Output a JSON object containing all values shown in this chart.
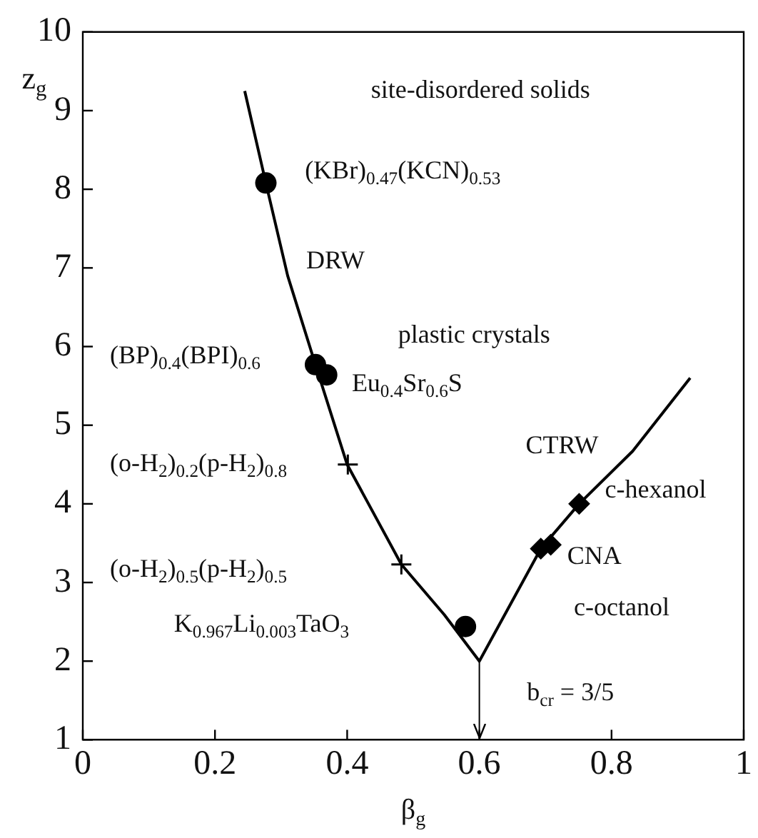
{
  "chart_data": {
    "type": "scatter",
    "xlabel": "β$_{g}$",
    "ylabel": "z$_{g}$",
    "xlim": [
      0,
      1
    ],
    "ylim": [
      1,
      10
    ],
    "xticks": [
      0,
      0.2,
      0.4,
      0.6,
      0.8,
      1
    ],
    "yticks": [
      1,
      2,
      3,
      4,
      5,
      6,
      7,
      8,
      9,
      10
    ],
    "grid": false,
    "legend": false,
    "series": [
      {
        "type": "line",
        "color": "#000000",
        "marker": "none",
        "x": [
          0.245,
          0.277,
          0.31,
          0.352,
          0.4,
          0.482,
          0.547,
          0.6,
          0.693,
          0.751,
          0.832,
          0.919
        ],
        "values": [
          9.25,
          8.08,
          6.9,
          5.77,
          4.5,
          3.23,
          2.59,
          2.0,
          3.43,
          4.0,
          4.67,
          5.6
        ]
      },
      {
        "type": "scatter",
        "color": "#000000",
        "marker": "circle",
        "x": [
          0.277,
          0.352,
          0.369,
          0.579
        ],
        "values": [
          8.08,
          5.77,
          5.64,
          2.44
        ]
      },
      {
        "type": "scatter",
        "color": "#000000",
        "marker": "cross",
        "x": [
          0.401,
          0.482
        ],
        "values": [
          4.5,
          3.23
        ]
      },
      {
        "type": "scatter",
        "color": "#000000",
        "marker": "diamond",
        "x": [
          0.693,
          0.708,
          0.751
        ],
        "values": [
          3.43,
          3.48,
          4.0
        ]
      }
    ],
    "ref_lines": [
      {
        "axis": "x",
        "value": 0.6
      }
    ],
    "annotations": [
      "site-disordered solids",
      "(KBr)$_{0.47}$(KCN)$_{0.53}$",
      "DRW",
      "plastic crystals",
      "(BP)$_{0.4}$(BPI)$_{0.6}$",
      "Eu$_{0.4}$Sr$_{0.6}$S",
      "(o-H$_{2}$)$_{0.2}$(p-H$_{2}$)$_{0.8}$",
      "(o-H$_{2}$)$_{0.5}$(p-H$_{2}$)$_{0.5}$",
      "K$_{0.967}$Li$_{0.003}$TaO$_{3}$",
      "CTRW",
      "c-hexanol",
      "CNA",
      "c-octanol",
      "b$_{cr}$ = 3/5"
    ]
  }
}
